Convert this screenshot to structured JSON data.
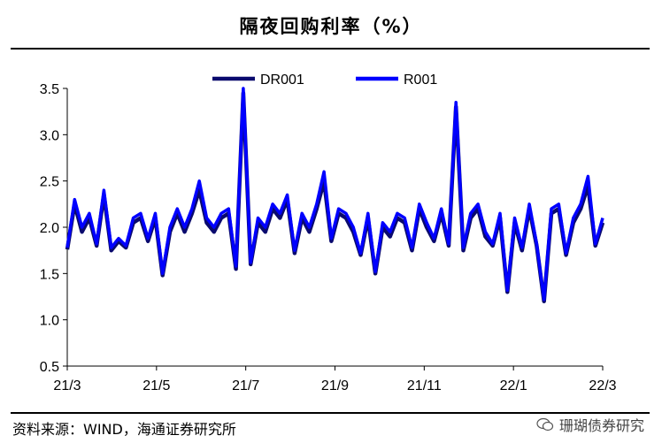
{
  "title": "隔夜回购利率（%）",
  "source": "资料来源：WIND，海通证券研究所",
  "watermark": "珊瑚债券研究",
  "colors": {
    "DR001": "#0a0a6e",
    "R001": "#0000ff",
    "axis": "#000000"
  },
  "chart_data": {
    "type": "line",
    "title": "隔夜回购利率（%）",
    "xlabel": "",
    "ylabel": "",
    "ylim": [
      0.5,
      3.5
    ],
    "yticks": [
      "0.5",
      "1.0",
      "1.5",
      "2.0",
      "2.5",
      "3.0",
      "3.5"
    ],
    "xticks": [
      "21/3",
      "21/5",
      "21/7",
      "21/9",
      "21/11",
      "22/1",
      "22/3"
    ],
    "legend": "top",
    "grid": false,
    "x": [
      "2021-03-01",
      "2021-03-06",
      "2021-03-11",
      "2021-03-16",
      "2021-03-21",
      "2021-03-26",
      "2021-03-31",
      "2021-04-05",
      "2021-04-10",
      "2021-04-15",
      "2021-04-20",
      "2021-04-25",
      "2021-04-30",
      "2021-05-05",
      "2021-05-10",
      "2021-05-15",
      "2021-05-20",
      "2021-05-25",
      "2021-05-30",
      "2021-06-04",
      "2021-06-09",
      "2021-06-14",
      "2021-06-19",
      "2021-06-24",
      "2021-06-29",
      "2021-07-04",
      "2021-07-09",
      "2021-07-14",
      "2021-07-19",
      "2021-07-24",
      "2021-07-29",
      "2021-08-03",
      "2021-08-08",
      "2021-08-13",
      "2021-08-18",
      "2021-08-23",
      "2021-08-28",
      "2021-09-02",
      "2021-09-07",
      "2021-09-12",
      "2021-09-17",
      "2021-09-22",
      "2021-09-27",
      "2021-10-02",
      "2021-10-07",
      "2021-10-12",
      "2021-10-17",
      "2021-10-22",
      "2021-10-27",
      "2021-11-01",
      "2021-11-06",
      "2021-11-11",
      "2021-11-16",
      "2021-11-21",
      "2021-11-26",
      "2021-12-01",
      "2021-12-06",
      "2021-12-11",
      "2021-12-16",
      "2021-12-21",
      "2021-12-26",
      "2021-12-31",
      "2022-01-05",
      "2022-01-10",
      "2022-01-15",
      "2022-01-20",
      "2022-01-25",
      "2022-01-30",
      "2022-02-04",
      "2022-02-09",
      "2022-02-14",
      "2022-02-19",
      "2022-02-24",
      "2022-03-01"
    ],
    "series": [
      {
        "name": "DR001",
        "values": [
          1.76,
          2.25,
          1.95,
          2.1,
          1.8,
          2.35,
          1.75,
          1.85,
          1.78,
          2.05,
          2.1,
          1.85,
          2.1,
          1.48,
          1.95,
          2.15,
          1.95,
          2.15,
          2.4,
          2.05,
          1.95,
          2.1,
          2.15,
          1.55,
          3.45,
          1.6,
          2.05,
          1.95,
          2.2,
          2.1,
          2.3,
          1.72,
          2.1,
          1.95,
          2.2,
          2.5,
          1.85,
          2.15,
          2.1,
          1.95,
          1.7,
          2.1,
          1.5,
          2.0,
          1.9,
          2.1,
          2.05,
          1.75,
          2.2,
          2.0,
          1.85,
          2.15,
          1.8,
          3.3,
          1.75,
          2.1,
          2.2,
          1.9,
          1.8,
          2.1,
          1.3,
          2.05,
          1.75,
          2.2,
          1.8,
          1.2,
          2.15,
          2.2,
          1.7,
          2.05,
          2.2,
          2.45,
          1.8,
          2.05
        ]
      },
      {
        "name": "R001",
        "values": [
          1.78,
          2.3,
          2.0,
          2.15,
          1.82,
          2.4,
          1.78,
          1.88,
          1.8,
          2.1,
          2.15,
          1.88,
          2.15,
          1.5,
          2.0,
          2.2,
          2.0,
          2.2,
          2.5,
          2.1,
          2.0,
          2.15,
          2.2,
          1.58,
          3.5,
          1.62,
          2.1,
          2.0,
          2.25,
          2.15,
          2.35,
          1.75,
          2.15,
          2.0,
          2.25,
          2.6,
          1.88,
          2.2,
          2.15,
          2.0,
          1.72,
          2.15,
          1.52,
          2.05,
          1.95,
          2.15,
          2.1,
          1.78,
          2.25,
          2.05,
          1.88,
          2.2,
          1.82,
          3.35,
          1.78,
          2.15,
          2.25,
          1.95,
          1.82,
          2.15,
          1.32,
          2.1,
          1.78,
          2.25,
          1.82,
          1.22,
          2.2,
          2.25,
          1.72,
          2.1,
          2.25,
          2.55,
          1.82,
          2.1
        ]
      }
    ]
  }
}
